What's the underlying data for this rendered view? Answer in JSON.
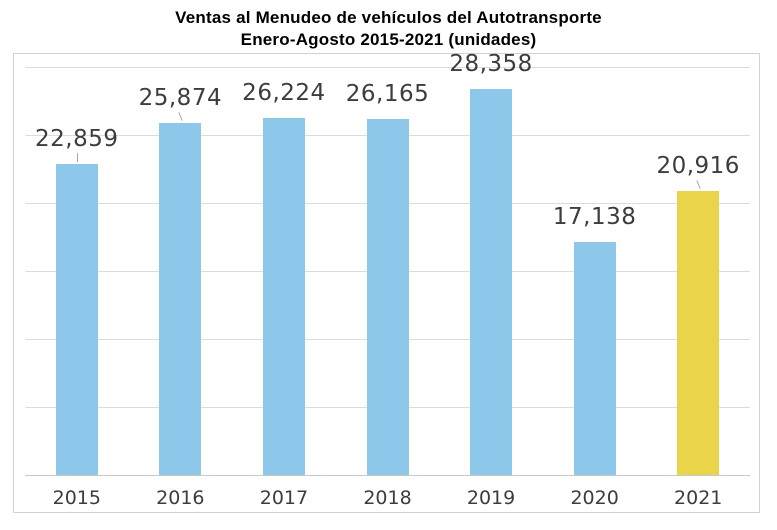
{
  "title": {
    "line1": "Ventas al Menudeo de vehículos del Autotransporte",
    "line2": "Enero-Agosto 2015-2021 (unidades)"
  },
  "chart_data": {
    "type": "bar",
    "title": "Ventas al Menudeo de vehículos del Autotransporte Enero-Agosto 2015-2021 (unidades)",
    "categories": [
      "2015",
      "2016",
      "2017",
      "2018",
      "2019",
      "2020",
      "2021"
    ],
    "values": [
      22859,
      25874,
      26224,
      26165,
      28358,
      17138,
      20916
    ],
    "value_labels": [
      "22,859",
      "25,874",
      "26,224",
      "26,165",
      "28,358",
      "17,138",
      "20,916"
    ],
    "xlabel": "",
    "ylabel": "",
    "ylim": [
      0,
      30000
    ],
    "gridline_step": 5000,
    "grid": true,
    "y_tick_labels_visible": false,
    "legend_position": "none",
    "bar_colors": [
      "#8dc7e9",
      "#8dc7e9",
      "#8dc7e9",
      "#8dc7e9",
      "#8dc7e9",
      "#8dc7e9",
      "#ead44a"
    ],
    "leader_lines": [
      true,
      true,
      false,
      false,
      false,
      false,
      true
    ],
    "highlighted_category": "2021"
  },
  "colors": {
    "bar_blue": "#8dc7e9",
    "bar_yellow": "#ead44a",
    "gridline": "#dcdcdc",
    "axis_line": "#c8c8c8",
    "frame_border": "#d2d2d2",
    "value_label_text": "#3d3d3d",
    "title_text": "#000000",
    "background": "#ffffff",
    "leader_line": "#a8a8a8"
  }
}
